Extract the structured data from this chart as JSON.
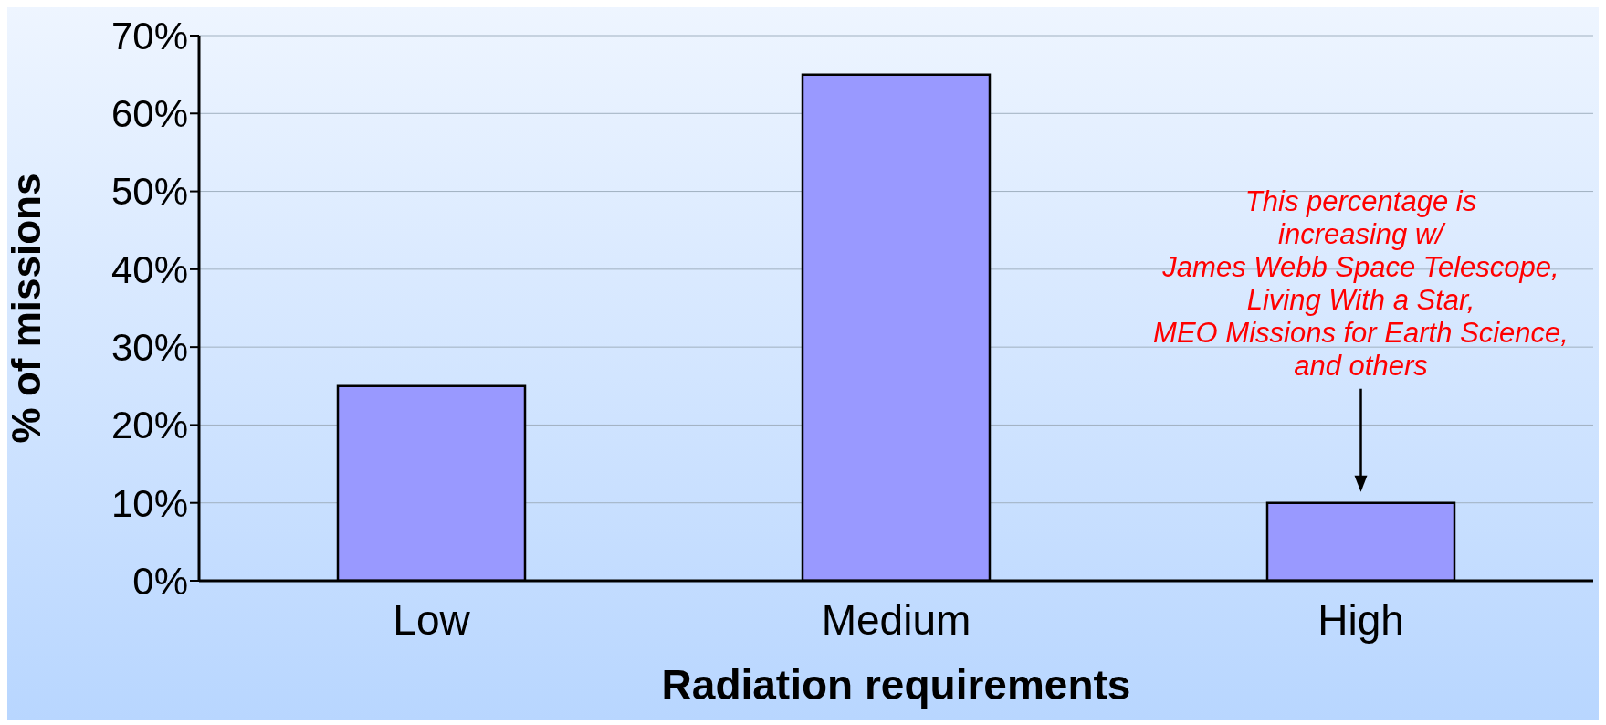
{
  "chart_data": {
    "type": "bar",
    "categories": [
      "Low",
      "Medium",
      "High"
    ],
    "values": [
      25,
      65,
      10
    ],
    "color": "#9999ff",
    "xlabel": "Radiation requirements",
    "ylabel": "% of missions",
    "ylim": [
      0,
      70
    ],
    "yticks": [
      {
        "value": 0,
        "label": "0%"
      },
      {
        "value": 10,
        "label": "10%"
      },
      {
        "value": 20,
        "label": "20%"
      },
      {
        "value": 30,
        "label": "30%"
      },
      {
        "value": 40,
        "label": "40%"
      },
      {
        "value": 50,
        "label": "50%"
      },
      {
        "value": 60,
        "label": "60%"
      },
      {
        "value": 70,
        "label": "70%"
      }
    ],
    "grid": "y",
    "annotations": [
      "This percentage is\nincreasing w/\nJames Webb Space Telescope,\nLiving With a Star,\nMEO Missions for Earth Science,\nand others"
    ]
  }
}
